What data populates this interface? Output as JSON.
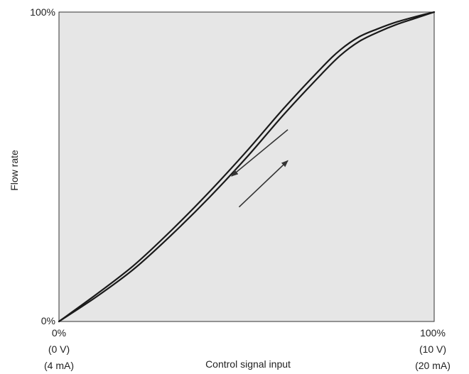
{
  "chart_data": {
    "type": "line",
    "title": "",
    "xlabel": "Control signal input",
    "ylabel": "Flow rate",
    "xlim": [
      0,
      100
    ],
    "ylim": [
      0,
      100
    ],
    "grid": false,
    "legend": "none",
    "x_ticks": [
      {
        "value": 0,
        "lines": [
          "0%",
          "(0 V)",
          "(4 mA)"
        ]
      },
      {
        "value": 100,
        "lines": [
          "100%",
          "(10 V)",
          "(20 mA)"
        ]
      }
    ],
    "y_ticks": [
      {
        "value": 0,
        "label": "0%"
      },
      {
        "value": 100,
        "label": "100%"
      }
    ],
    "series": [
      {
        "direction": "increasing",
        "x": [
          0,
          10,
          20,
          30,
          40,
          50,
          60,
          70,
          75,
          80,
          85,
          90,
          95,
          100
        ],
        "y": [
          0,
          8,
          17,
          28,
          40,
          53,
          67,
          80,
          86,
          90.5,
          93.5,
          96,
          98,
          100
        ]
      },
      {
        "direction": "decreasing",
        "x": [
          0,
          10,
          20,
          30,
          40,
          50,
          60,
          70,
          75,
          80,
          85,
          90,
          95,
          100
        ],
        "y": [
          0,
          8.8,
          18.2,
          29.5,
          41.8,
          55,
          69,
          82,
          87.8,
          92,
          94.6,
          96.8,
          98.5,
          100
        ]
      }
    ],
    "arrows": [
      {
        "direction": "decreasing",
        "from": [
          61,
          62
        ],
        "to": [
          46,
          47
        ]
      },
      {
        "direction": "increasing",
        "from": [
          48,
          37
        ],
        "to": [
          61,
          52
        ]
      }
    ],
    "colors": {
      "plot_background": "#e6e6e6",
      "frame": "#333333",
      "curve": "#1a1a1a",
      "arrow": "#333333"
    }
  }
}
